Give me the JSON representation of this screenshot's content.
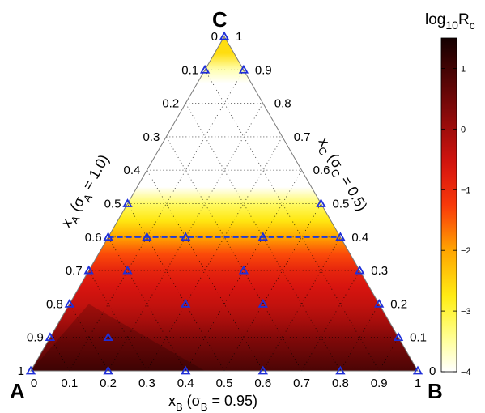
{
  "chart_data": {
    "type": "ternary-heatmap",
    "vertex_labels": {
      "A": "A",
      "B": "B",
      "C": "C"
    },
    "axis_A": {
      "var": "x",
      "sub": "A",
      "sigma_sub": "A",
      "sigma_value": "1.0"
    },
    "axis_B": {
      "var": "x",
      "sub": "B",
      "sigma_sub": "B",
      "sigma_value": "0.95"
    },
    "axis_C": {
      "var": "x",
      "sub": "C",
      "sigma_sub": "C",
      "sigma_value": "0.5"
    },
    "ticks": [
      "0",
      "0.1",
      "0.2",
      "0.3",
      "0.4",
      "0.5",
      "0.6",
      "0.7",
      "0.8",
      "0.9",
      "1"
    ],
    "colorbar": {
      "label_base": "log",
      "label_sub": "10",
      "label_var": "R",
      "label_var_sub": "c",
      "range": [
        -4,
        1.5
      ],
      "ticks": [
        "1",
        "0",
        "−1",
        "−2",
        "−3",
        "−4"
      ],
      "tick_values": [
        1,
        0,
        -1,
        -2,
        -3,
        -4
      ]
    },
    "heatmap_profile": {
      "xC_rows": [
        0.0,
        0.05,
        0.1,
        0.15,
        0.2,
        0.25,
        0.3,
        0.35,
        0.4,
        0.45,
        0.5,
        0.55,
        0.6,
        0.65,
        0.7,
        0.8,
        0.86,
        0.9,
        0.95,
        1.0
      ],
      "log10Rc_rows": [
        0.9,
        0.6,
        0.3,
        -0.1,
        -0.4,
        -0.6,
        -0.9,
        -1.4,
        -2.0,
        -2.7,
        -3.2,
        -4.0,
        -4.0,
        -4.0,
        -4.0,
        -4.0,
        -4.0,
        -3.6,
        -2.6,
        -2.6
      ]
    },
    "sample_points": [
      {
        "xA": 1.0,
        "xB": 0.0,
        "xC": 0.0
      },
      {
        "xA": 0.8,
        "xB": 0.2,
        "xC": 0.0
      },
      {
        "xA": 0.6,
        "xB": 0.4,
        "xC": 0.0
      },
      {
        "xA": 0.4,
        "xB": 0.6,
        "xC": 0.0
      },
      {
        "xA": 0.2,
        "xB": 0.8,
        "xC": 0.0
      },
      {
        "xA": 0.0,
        "xB": 1.0,
        "xC": 0.0
      },
      {
        "xA": 0.9,
        "xB": 0.0,
        "xC": 0.1
      },
      {
        "xA": 0.75,
        "xB": 0.15,
        "xC": 0.1
      },
      {
        "xA": 0.0,
        "xB": 0.9,
        "xC": 0.1
      },
      {
        "xA": 0.8,
        "xB": 0.0,
        "xC": 0.2
      },
      {
        "xA": 0.5,
        "xB": 0.3,
        "xC": 0.2
      },
      {
        "xA": 0.3,
        "xB": 0.5,
        "xC": 0.2
      },
      {
        "xA": 0.0,
        "xB": 0.8,
        "xC": 0.2
      },
      {
        "xA": 0.7,
        "xB": 0.0,
        "xC": 0.3
      },
      {
        "xA": 0.6,
        "xB": 0.1,
        "xC": 0.3
      },
      {
        "xA": 0.3,
        "xB": 0.4,
        "xC": 0.3
      },
      {
        "xA": 0.0,
        "xB": 0.7,
        "xC": 0.3
      },
      {
        "xA": 0.6,
        "xB": 0.0,
        "xC": 0.4
      },
      {
        "xA": 0.5,
        "xB": 0.1,
        "xC": 0.4
      },
      {
        "xA": 0.4,
        "xB": 0.2,
        "xC": 0.4
      },
      {
        "xA": 0.2,
        "xB": 0.4,
        "xC": 0.4
      },
      {
        "xA": 0.0,
        "xB": 0.6,
        "xC": 0.4
      },
      {
        "xA": 0.5,
        "xB": 0.0,
        "xC": 0.5
      },
      {
        "xA": 0.0,
        "xB": 0.5,
        "xC": 0.5
      },
      {
        "xA": 0.1,
        "xB": 0.0,
        "xC": 0.9
      },
      {
        "xA": 0.0,
        "xB": 0.1,
        "xC": 0.9
      },
      {
        "xA": 0.0,
        "xB": 0.0,
        "xC": 1.0
      }
    ],
    "dashed_line": {
      "xC": 0.4,
      "color": "#1f3bd6"
    },
    "colors": {
      "marker": "#1f2fd8",
      "grid": "#000000",
      "edge": "#7a7a7a"
    }
  }
}
